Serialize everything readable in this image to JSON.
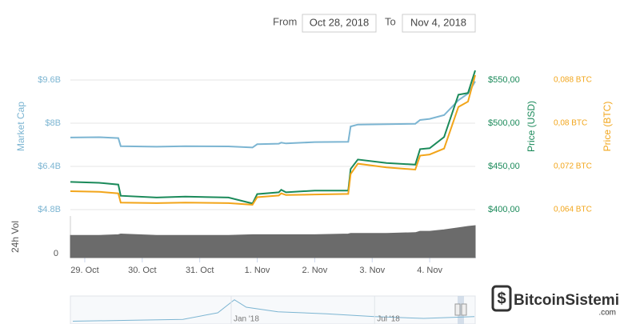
{
  "range": {
    "from_label": "From",
    "from": "Oct 28, 2018",
    "to_label": "To",
    "to": "Nov 4, 2018"
  },
  "chart_data": {
    "type": "line",
    "x": [
      "2018-10-28 18:00",
      "2018-10-29 06:00",
      "2018-10-29 14:00",
      "2018-10-29 15:00",
      "2018-10-30 06:00",
      "2018-10-30 18:00",
      "2018-10-31 12:00",
      "2018-10-31 22:00",
      "2018-11-01 00:00",
      "2018-11-01 09:00",
      "2018-11-01 10:00",
      "2018-11-01 12:00",
      "2018-11-02 00:00",
      "2018-11-02 14:00",
      "2018-11-02 15:00",
      "2018-11-02 18:00",
      "2018-11-03 06:00",
      "2018-11-03 18:00",
      "2018-11-03 20:00",
      "2018-11-04 00:00",
      "2018-11-04 06:00",
      "2018-11-04 12:00",
      "2018-11-04 16:00",
      "2018-11-04 19:00"
    ],
    "xlim": [
      "2018-10-28 18:00",
      "2018-11-04 19:00"
    ],
    "xticks": [
      {
        "value": "2018-10-29",
        "label": "29. Oct"
      },
      {
        "value": "2018-10-30",
        "label": "30. Oct"
      },
      {
        "value": "2018-10-31",
        "label": "31. Oct"
      },
      {
        "value": "2018-11-01",
        "label": "1. Nov"
      },
      {
        "value": "2018-11-02",
        "label": "2. Nov"
      },
      {
        "value": "2018-11-03",
        "label": "3. Nov"
      },
      {
        "value": "2018-11-04",
        "label": "4. Nov"
      }
    ],
    "ylabel": "Market Cap",
    "ylim": [
      4.8,
      9.6
    ],
    "yticks": [
      {
        "value": 9.6,
        "label": "$9.6B"
      },
      {
        "value": 8,
        "label": "$8B"
      },
      {
        "value": 6.4,
        "label": "$6.4B"
      },
      {
        "value": 4.8,
        "label": "$4.8B"
      }
    ],
    "y2label": "Price (USD)",
    "y2lim": [
      400,
      550
    ],
    "y2ticks": [
      {
        "value": 550,
        "label": "$550,00"
      },
      {
        "value": 500,
        "label": "$500,00"
      },
      {
        "value": 450,
        "label": "$450,00"
      },
      {
        "value": 400,
        "label": "$400,00"
      }
    ],
    "y3label": "Price (BTC)",
    "y3lim": [
      0.064,
      0.088
    ],
    "y3ticks": [
      {
        "value": 0.088,
        "label": "0,088 BTC"
      },
      {
        "value": 0.08,
        "label": "0,08 BTC"
      },
      {
        "value": 0.072,
        "label": "0,072 BTC"
      },
      {
        "value": 0.064,
        "label": "0,064 BTC"
      }
    ],
    "volume_label": "24h Vol",
    "volume_lim": [
      0,
      6
    ],
    "volume_ticks": [
      0
    ],
    "grid": true,
    "series": [
      {
        "name": "Market Cap",
        "color": "#7cb5d2",
        "axis": "y",
        "values": [
          7.47,
          7.48,
          7.45,
          7.15,
          7.13,
          7.15,
          7.14,
          7.1,
          7.22,
          7.24,
          7.28,
          7.25,
          7.3,
          7.31,
          7.88,
          7.95,
          7.96,
          7.98,
          8.12,
          8.16,
          8.3,
          8.85,
          9.1,
          9.55
        ]
      },
      {
        "name": "Price (USD)",
        "color": "#1b8a5a",
        "axis": "y2",
        "values": [
          432,
          431,
          429,
          416,
          414,
          415,
          414,
          407,
          418,
          420,
          423,
          420,
          422,
          422,
          447,
          458,
          454,
          452,
          470,
          471,
          484,
          533,
          535,
          561
        ]
      },
      {
        "name": "Price (BTC)",
        "color": "#f2a51a",
        "axis": "y3",
        "values": [
          0.0674,
          0.0673,
          0.067,
          0.0653,
          0.0652,
          0.0653,
          0.0652,
          0.0649,
          0.0663,
          0.0666,
          0.067,
          0.0667,
          0.0668,
          0.0669,
          0.0706,
          0.0725,
          0.0718,
          0.0714,
          0.074,
          0.0742,
          0.0753,
          0.083,
          0.084,
          0.0889
        ]
      },
      {
        "name": "24h Vol",
        "color": "#6b6b6b",
        "axis": "volume",
        "values": [
          3.2,
          3.2,
          3.3,
          3.4,
          3.2,
          3.2,
          3.2,
          3.3,
          3.3,
          3.3,
          3.3,
          3.3,
          3.3,
          3.4,
          3.5,
          3.5,
          3.5,
          3.6,
          3.8,
          3.8,
          4.0,
          4.3,
          4.5,
          4.6
        ]
      }
    ],
    "navigator": {
      "x": [
        "2017-06-15",
        "2017-09-01",
        "2017-11-01",
        "2017-12-15",
        "2018-01-05",
        "2018-01-20",
        "2018-03-01",
        "2018-05-01",
        "2018-07-01",
        "2018-09-01",
        "2018-11-04"
      ],
      "values": [
        3,
        4,
        5,
        12,
        26,
        18,
        13,
        11,
        8,
        6,
        8
      ],
      "xlim": [
        "2017-06-12",
        "2018-11-05"
      ],
      "ylim": [
        0,
        30
      ],
      "xticks": [
        {
          "value": "2018-01-01",
          "label": "Jan '18"
        },
        {
          "value": "2018-07-01",
          "label": "Jul '18"
        }
      ]
    }
  },
  "watermark": {
    "brand": "BitcoinSistemi",
    "domain": ".com"
  }
}
